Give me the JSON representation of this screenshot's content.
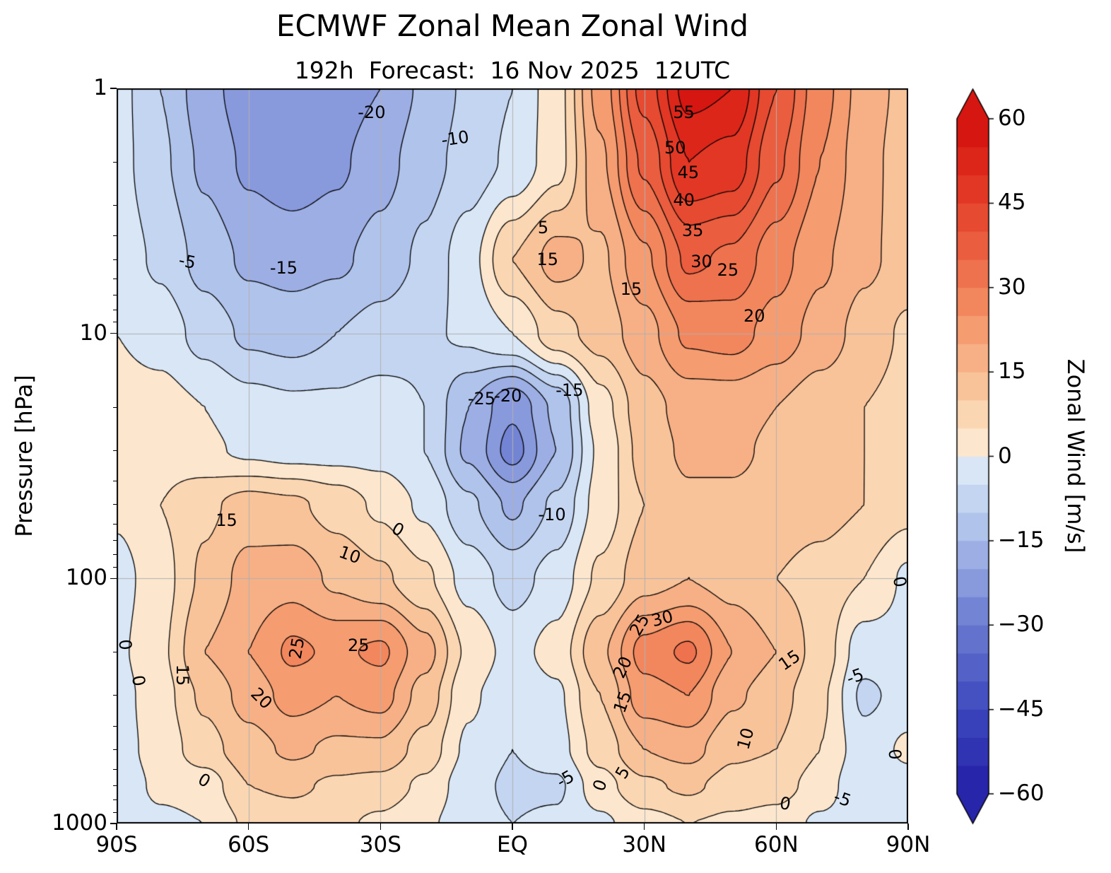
{
  "chart_data": {
    "type": "heatmap",
    "style": "filled contour (contourf) with labeled contour lines, 5 m/s interval; negative contours dashed",
    "title": "ECMWF Zonal Mean Zonal Wind",
    "subtitle": "192h  Forecast:  16 Nov 2025  12UTC",
    "xlabel": "",
    "ylabel": "Pressure [hPa]",
    "x_axis": {
      "name": "latitude",
      "range": [
        -90,
        90
      ],
      "ticks": [
        {
          "label": "90S",
          "value": -90
        },
        {
          "label": "60S",
          "value": -60
        },
        {
          "label": "30S",
          "value": -30
        },
        {
          "label": "EQ",
          "value": 0
        },
        {
          "label": "30N",
          "value": 30
        },
        {
          "label": "60N",
          "value": 60
        },
        {
          "label": "90N",
          "value": 90
        }
      ]
    },
    "y_axis": {
      "name": "pressure",
      "scale": "log",
      "range": [
        1,
        1000
      ],
      "ticks": [
        {
          "label": "1",
          "value": 1
        },
        {
          "label": "10",
          "value": 10
        },
        {
          "label": "100",
          "value": 100
        },
        {
          "label": "1000",
          "value": 1000
        }
      ]
    },
    "colorbar": {
      "label": "Zonal Wind [m/s]",
      "min": -60,
      "max": 60,
      "step": 5,
      "tick_values": [
        -60,
        -45,
        -30,
        -15,
        0,
        15,
        30,
        45,
        60
      ],
      "tick_labels": [
        "−60",
        "−45",
        "−30",
        "−15",
        "0",
        "15",
        "30",
        "45",
        "60"
      ]
    },
    "grid_color": "#b0b0b0",
    "latitudes": [
      -90,
      -80,
      -70,
      -60,
      -50,
      -40,
      -30,
      -20,
      -10,
      0,
      10,
      20,
      30,
      40,
      50,
      60,
      70,
      80,
      90
    ],
    "pressures_hPa": [
      1,
      2,
      5,
      10,
      20,
      30,
      50,
      100,
      200,
      300,
      500,
      700,
      1000
    ],
    "wind_ms_grid": [
      [
        -3,
        -10,
        -18,
        -23,
        -25,
        -23,
        -20,
        -14,
        -9,
        -5,
        3,
        22,
        42,
        57,
        55,
        40,
        27,
        18,
        13
      ],
      [
        -3,
        -9,
        -16,
        -21,
        -23,
        -21,
        -17,
        -12,
        -8,
        -4,
        3,
        19,
        36,
        50,
        48,
        36,
        25,
        17,
        12
      ],
      [
        -2,
        -6,
        -12,
        -16,
        -17,
        -16,
        -13,
        -9,
        -2,
        10,
        17,
        14,
        24,
        36,
        34,
        27,
        21,
        16,
        13
      ],
      [
        0,
        -2,
        -7,
        -11,
        -12,
        -10,
        -8,
        -6,
        -4,
        0,
        8,
        12,
        18,
        26,
        27,
        23,
        18,
        13,
        9
      ],
      [
        2,
        2,
        0,
        -3,
        -4,
        -4,
        -3,
        -5,
        -15,
        -24,
        -14,
        3,
        13,
        17,
        17,
        15,
        12,
        10,
        8
      ],
      [
        3,
        3,
        1,
        -1,
        -2,
        -2,
        -2,
        -5,
        -16,
        -27,
        -15,
        1,
        12,
        16,
        16,
        14,
        12,
        10,
        8
      ],
      [
        1,
        5,
        9,
        12,
        11,
        8,
        4,
        -1,
        -9,
        -16,
        -9,
        2,
        10,
        14,
        14,
        13,
        12,
        10,
        7
      ],
      [
        -2,
        3,
        11,
        17,
        18,
        14,
        11,
        6,
        -2,
        -7,
        -3,
        6,
        13,
        15,
        13,
        10,
        8,
        5,
        -1
      ],
      [
        -1,
        4,
        15,
        20,
        26,
        24,
        26,
        17,
        4,
        -2,
        2,
        14,
        27,
        31,
        20,
        15,
        8,
        -3,
        -2
      ],
      [
        -2,
        3,
        11,
        17,
        22,
        20,
        22,
        13,
        1,
        -4,
        -1,
        10,
        23,
        25,
        16,
        12,
        6,
        -6,
        -3
      ],
      [
        -2,
        2,
        8,
        13,
        16,
        14,
        14,
        8,
        -1,
        -5,
        -2,
        7,
        15,
        17,
        11,
        10,
        5,
        -3,
        1
      ],
      [
        -3,
        1,
        2,
        10,
        11,
        9,
        8,
        4,
        -3,
        -6,
        -6,
        3,
        9,
        11,
        8,
        7,
        3,
        -5,
        -2
      ],
      [
        -3,
        -1,
        0,
        6,
        7,
        6,
        4,
        1,
        -3,
        -5,
        -4,
        -1,
        3,
        5,
        4,
        3,
        -1,
        -3,
        -2
      ]
    ],
    "contour_labels": [
      {
        "text": "-20",
        "lat": -32,
        "p": 1.25,
        "rot": 0
      },
      {
        "text": "-10",
        "lat": -13,
        "p": 1.6,
        "rot": -8
      },
      {
        "text": "-5",
        "lat": -74,
        "p": 5.1,
        "rot": 12
      },
      {
        "text": "-15",
        "lat": -52,
        "p": 5.4,
        "rot": 0
      },
      {
        "text": "5",
        "lat": 7,
        "p": 3.7,
        "rot": 0
      },
      {
        "text": "15",
        "lat": 8,
        "p": 5.0,
        "rot": 0
      },
      {
        "text": "55",
        "lat": 39,
        "p": 1.25,
        "rot": 0
      },
      {
        "text": "50",
        "lat": 37,
        "p": 1.75,
        "rot": 0
      },
      {
        "text": "45",
        "lat": 40,
        "p": 2.2,
        "rot": 0
      },
      {
        "text": "40",
        "lat": 39,
        "p": 2.85,
        "rot": 0
      },
      {
        "text": "35",
        "lat": 41,
        "p": 3.8,
        "rot": 0
      },
      {
        "text": "30",
        "lat": 43,
        "p": 5.1,
        "rot": 0
      },
      {
        "text": "25",
        "lat": 49,
        "p": 5.5,
        "rot": 0
      },
      {
        "text": "15",
        "lat": 27,
        "p": 6.6,
        "rot": 0
      },
      {
        "text": "20",
        "lat": 55,
        "p": 8.5,
        "rot": 0
      },
      {
        "text": "-25",
        "lat": -7,
        "p": 18.5,
        "rot": 0
      },
      {
        "text": "-20",
        "lat": -1,
        "p": 18.0,
        "rot": 0
      },
      {
        "text": "-15",
        "lat": 13,
        "p": 17.0,
        "rot": 0
      },
      {
        "text": "-10",
        "lat": 9,
        "p": 55,
        "rot": 0
      },
      {
        "text": "0",
        "lat": -26,
        "p": 63,
        "rot": 30
      },
      {
        "text": "15",
        "lat": -65,
        "p": 58,
        "rot": 0
      },
      {
        "text": "10",
        "lat": -37,
        "p": 80,
        "rot": 20
      },
      {
        "text": "25",
        "lat": -49,
        "p": 193,
        "rot": -80
      },
      {
        "text": "25",
        "lat": -35,
        "p": 188,
        "rot": 0
      },
      {
        "text": "20",
        "lat": -57,
        "p": 308,
        "rot": 45
      },
      {
        "text": "15",
        "lat": -75,
        "p": 248,
        "rot": 90
      },
      {
        "text": "30",
        "lat": 34,
        "p": 146,
        "rot": -15
      },
      {
        "text": "25",
        "lat": 29,
        "p": 155,
        "rot": -60
      },
      {
        "text": "20",
        "lat": 25,
        "p": 230,
        "rot": -65
      },
      {
        "text": "15",
        "lat": 25,
        "p": 320,
        "rot": -70
      },
      {
        "text": "15",
        "lat": 63,
        "p": 215,
        "rot": -35
      },
      {
        "text": "10",
        "lat": 53,
        "p": 450,
        "rot": -75
      },
      {
        "text": "-5",
        "lat": 78,
        "p": 252,
        "rot": -20
      },
      {
        "text": "0",
        "lat": 88,
        "p": 103,
        "rot": 80
      },
      {
        "text": "0",
        "lat": -88,
        "p": 186,
        "rot": 85
      },
      {
        "text": "0",
        "lat": -85,
        "p": 262,
        "rot": 80
      },
      {
        "text": "0",
        "lat": -70,
        "p": 668,
        "rot": 30
      },
      {
        "text": "-5",
        "lat": 12,
        "p": 660,
        "rot": -30
      },
      {
        "text": "5",
        "lat": 25,
        "p": 620,
        "rot": -60
      },
      {
        "text": "0",
        "lat": 20,
        "p": 700,
        "rot": -70
      },
      {
        "text": "0",
        "lat": 62,
        "p": 830,
        "rot": 10
      },
      {
        "text": "-5",
        "lat": 75,
        "p": 790,
        "rot": 20
      },
      {
        "text": "0",
        "lat": 87,
        "p": 520,
        "rot": 85
      }
    ]
  }
}
